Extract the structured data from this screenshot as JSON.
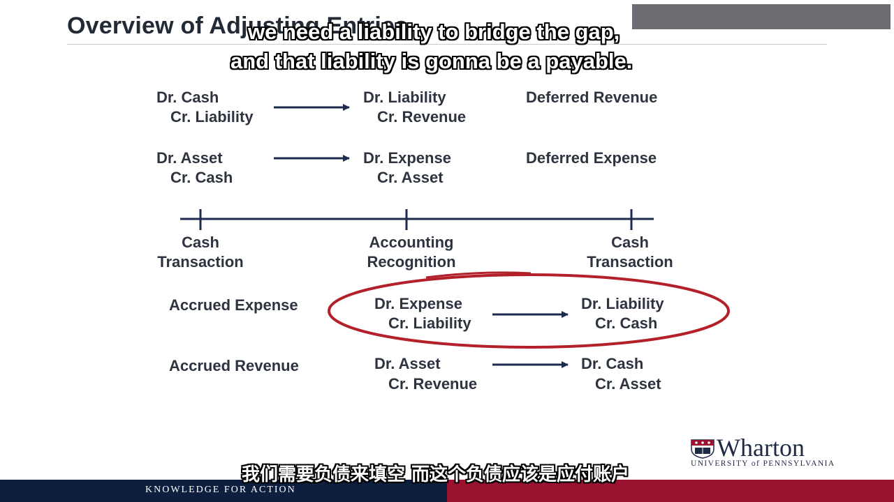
{
  "slide": {
    "title": "Overview of Adjusting Entries",
    "subtitle_en_line1": "we need a liability to bridge the gap,",
    "subtitle_en_line2": "and that liability is gonna be a payable.",
    "subtitle_zh": "我们需要负债来填空 而这个负债应该是应付账户"
  },
  "deferred_revenue": {
    "start_line1": "Dr. Cash",
    "start_line2": "Cr. Liability",
    "end_line1": "Dr. Liability",
    "end_line2": "Cr. Revenue",
    "label": "Deferred Revenue"
  },
  "deferred_expense": {
    "start_line1": "Dr. Asset",
    "start_line2": "Cr. Cash",
    "end_line1": "Dr. Expense",
    "end_line2": "Cr. Asset",
    "label": "Deferred Expense"
  },
  "timeline": {
    "left_line1": "Cash",
    "left_line2": "Transaction",
    "mid_line1": "Accounting",
    "mid_line2": "Recognition",
    "right_line1": "Cash",
    "right_line2": "Transaction"
  },
  "accrued_expense": {
    "label": "Accrued Expense",
    "start_line1": "Dr. Expense",
    "start_line2": "Cr. Liability",
    "end_line1": "Dr. Liability",
    "end_line2": "Cr. Cash"
  },
  "accrued_revenue": {
    "label": "Accrued Revenue",
    "start_line1": "Dr. Asset",
    "start_line2": "Cr. Revenue",
    "end_line1": "Dr. Cash",
    "end_line2": "Cr. Asset"
  },
  "branding": {
    "logo_name": "Wharton",
    "logo_university": "UNIVERSITY of PENNSYLVANIA",
    "footer": "KNOWLEDGE FOR ACTION",
    "navy": "#0d1e3f",
    "red": "#9a1230"
  },
  "annotation": {
    "highlight_color": "#b3202a",
    "crest_icon": "wharton-shield-icon"
  }
}
